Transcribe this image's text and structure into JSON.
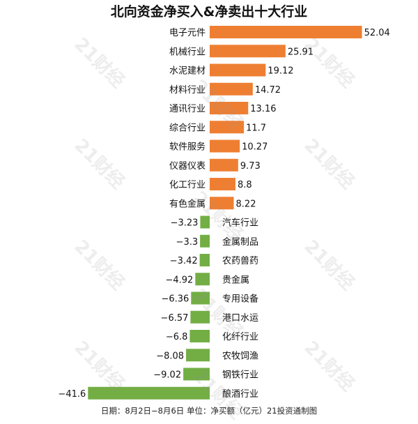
{
  "chart_data": {
    "type": "bar",
    "orientation": "horizontal",
    "title": "北向资金净买入&净卖出十大行业",
    "categories": [
      "电子元件",
      "机械行业",
      "水泥建材",
      "材料行业",
      "通讯行业",
      "综合行业",
      "软件服务",
      "仪器仪表",
      "化工行业",
      "有色金属",
      "汽车行业",
      "金属制品",
      "农药兽药",
      "贵金属",
      "专用设备",
      "港口水运",
      "化纤行业",
      "农牧饲渔",
      "钢铁行业",
      "酿酒行业"
    ],
    "values": [
      52.04,
      25.91,
      19.12,
      14.72,
      13.16,
      11.7,
      10.27,
      9.73,
      8.8,
      8.22,
      -3.23,
      -3.3,
      -3.42,
      -4.92,
      -6.36,
      -6.57,
      -6.8,
      -8.08,
      -9.02,
      -41.6
    ],
    "value_labels": [
      "52.04",
      "25.91",
      "19.12",
      "14.72",
      "13.16",
      "11.7",
      "10.27",
      "9.73",
      "8.8",
      "8.22",
      "−3.23",
      "−3.3",
      "−3.42",
      "−4.92",
      "−6.36",
      "−6.57",
      "−6.8",
      "−8.08",
      "−9.02",
      "−41.6"
    ],
    "colors": {
      "positive": "#ee7f32",
      "negative": "#73ae45"
    },
    "footer": "日期：8月2日−8月6日 单位：净买额（亿元）21投资通制图",
    "watermark": "21财经"
  }
}
